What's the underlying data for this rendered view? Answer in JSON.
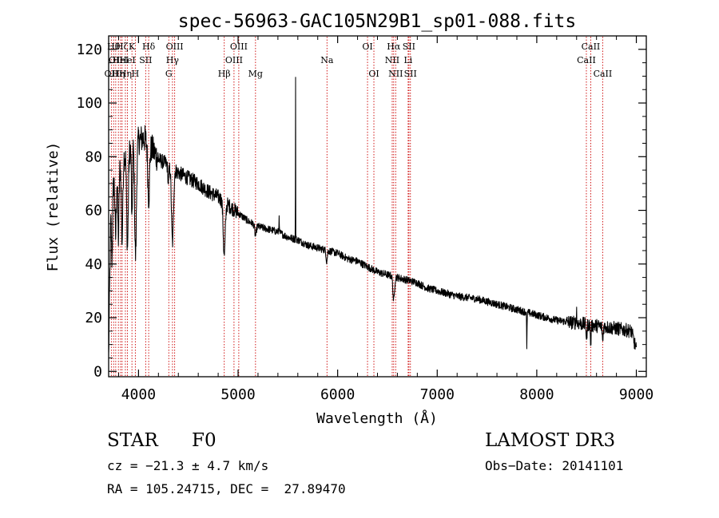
{
  "chart_data": {
    "type": "line",
    "title": "spec-56963-GAC105N29B1_sp01-088.fits",
    "xlabel": "Wavelength (Å)",
    "ylabel": "Flux (relative)",
    "xlim": [
      3700,
      9100
    ],
    "ylim": [
      -2,
      125
    ],
    "xticks": [
      4000,
      5000,
      6000,
      7000,
      8000,
      9000
    ],
    "xtick_labels": [
      "4000",
      "5000",
      "6000",
      "7000",
      "8000",
      "9000"
    ],
    "yticks": [
      0,
      20,
      40,
      60,
      80,
      100,
      120
    ],
    "ytick_labels": [
      "0",
      "20",
      "40",
      "60",
      "80",
      "100",
      "120"
    ],
    "line_color": "#000000",
    "marker_color": "#cc0000",
    "spectrum_anchors": {
      "x": [
        3700,
        3720,
        3750,
        3800,
        3850,
        3900,
        3950,
        4000,
        4050,
        4100,
        4150,
        4200,
        4300,
        4400,
        4500,
        4600,
        4700,
        4800,
        4900,
        5000,
        5100,
        5200,
        5300,
        5400,
        5500,
        5600,
        5700,
        5800,
        5900,
        6000,
        6100,
        6200,
        6300,
        6400,
        6500,
        6600,
        6700,
        6800,
        6900,
        7000,
        7200,
        7400,
        7600,
        7800,
        8000,
        8200,
        8400,
        8600,
        8800,
        8950,
        9000
      ],
      "y": [
        5,
        55,
        70,
        75,
        80,
        82,
        85,
        86,
        87,
        85,
        82,
        79,
        77,
        74,
        72,
        70,
        67,
        65,
        62,
        59,
        56,
        54,
        53,
        52,
        50,
        49,
        47,
        46,
        45,
        44,
        42,
        41,
        39,
        37,
        36,
        35,
        34,
        33,
        31,
        30,
        28,
        27,
        25,
        23,
        21,
        19,
        18,
        17,
        16,
        15,
        8
      ]
    },
    "spectrum_features": [
      {
        "x": 3734,
        "depth": 20,
        "width": 5
      },
      {
        "x": 3770,
        "depth": 22,
        "width": 6
      },
      {
        "x": 3798,
        "depth": 25,
        "width": 6
      },
      {
        "x": 3835,
        "depth": 30,
        "width": 7
      },
      {
        "x": 3889,
        "depth": 35,
        "width": 8
      },
      {
        "x": 3934,
        "depth": 30,
        "width": 5
      },
      {
        "x": 3970,
        "depth": 42,
        "width": 9
      },
      {
        "x": 4102,
        "depth": 20,
        "width": 9
      },
      {
        "x": 4300,
        "depth": 6,
        "width": 6
      },
      {
        "x": 4341,
        "depth": 28,
        "width": 10
      },
      {
        "x": 4861,
        "depth": 20,
        "width": 10
      },
      {
        "x": 5175,
        "depth": 4,
        "width": 8
      },
      {
        "x": 5890,
        "depth": 4,
        "width": 6
      },
      {
        "x": 6563,
        "depth": 9,
        "width": 8
      },
      {
        "x": 7900,
        "depth": 14,
        "width": 2
      },
      {
        "x": 8500,
        "depth": 6,
        "width": 4
      },
      {
        "x": 8542,
        "depth": 7,
        "width": 4
      },
      {
        "x": 8662,
        "depth": 6,
        "width": 4
      }
    ],
    "spectrum_emission": [
      {
        "x": 5577,
        "height": 65,
        "width": 1.2
      },
      {
        "x": 5412,
        "height": 8,
        "width": 1.5
      },
      {
        "x": 8399,
        "height": 6,
        "width": 1.5
      }
    ],
    "line_markers": [
      {
        "x": 3727,
        "row": 2,
        "label": "OII"
      },
      {
        "x": 3750,
        "row": 0,
        "label": "Hθ"
      },
      {
        "x": 3771,
        "row": 1,
        "label": "OII"
      },
      {
        "x": 3798,
        "row": 2,
        "label": "Hη"
      },
      {
        "x": 3820,
        "row": 1,
        "label": "HeI"
      },
      {
        "x": 3835,
        "row": 0,
        "label": "Hζ"
      },
      {
        "x": 3868,
        "row": 2,
        "label": "Hη"
      },
      {
        "x": 3889,
        "row": 1,
        "label": "HeI"
      },
      {
        "x": 3934,
        "row": 0,
        "label": "K"
      },
      {
        "x": 3968,
        "row": 2,
        "label": "H"
      },
      {
        "x": 4072,
        "row": 1,
        "label": "SII"
      },
      {
        "x": 4102,
        "row": 0,
        "label": "Hδ"
      },
      {
        "x": 4304,
        "row": 2,
        "label": "G"
      },
      {
        "x": 4341,
        "row": 1,
        "label": "Hγ"
      },
      {
        "x": 4363,
        "row": 0,
        "label": "OIII"
      },
      {
        "x": 4861,
        "row": 2,
        "label": "Hβ"
      },
      {
        "x": 4959,
        "row": 1,
        "label": "OIII"
      },
      {
        "x": 5007,
        "row": 0,
        "label": "OIII"
      },
      {
        "x": 5175,
        "row": 2,
        "label": "Mg"
      },
      {
        "x": 5893,
        "row": 1,
        "label": "Na"
      },
      {
        "x": 6300,
        "row": 0,
        "label": "OI"
      },
      {
        "x": 6364,
        "row": 2,
        "label": "OI"
      },
      {
        "x": 6548,
        "row": 1,
        "label": "NII"
      },
      {
        "x": 6563,
        "row": 0,
        "label": "Hα"
      },
      {
        "x": 6583,
        "row": 2,
        "label": "NII"
      },
      {
        "x": 6708,
        "row": 1,
        "label": "Li"
      },
      {
        "x": 6716,
        "row": 0,
        "label": "SII"
      },
      {
        "x": 6731,
        "row": 2,
        "label": "SII"
      },
      {
        "x": 8498,
        "row": 1,
        "label": "CaII"
      },
      {
        "x": 8542,
        "row": 0,
        "label": "CaII"
      },
      {
        "x": 8662,
        "row": 2,
        "label": "CaII"
      }
    ]
  },
  "info": {
    "class_label": "STAR",
    "subclass": "F0",
    "survey": "LAMOST DR3",
    "redshift": "cz = −21.3 ± 4.7 km/s",
    "obs_date": "Obs−Date: 20141101",
    "coords": "RA = 105.24715, DEC =  27.89470"
  }
}
